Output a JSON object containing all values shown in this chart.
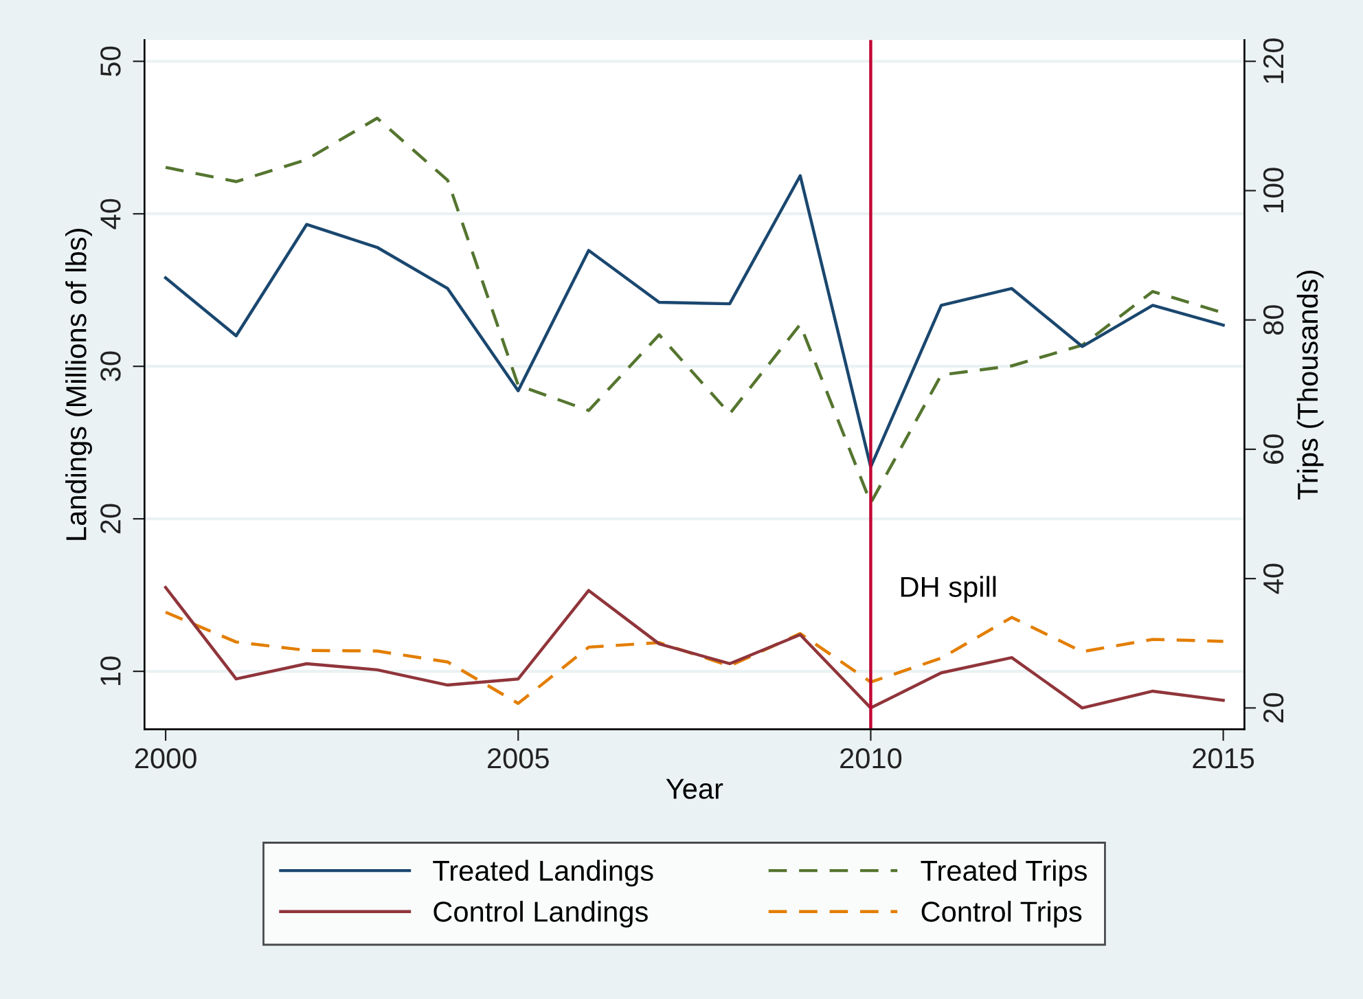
{
  "chart_data": {
    "type": "line",
    "xlabel": "Year",
    "ylabel": "Landings (Millions of lbs)",
    "y2label": "Trips (Thousands)",
    "x": [
      2000,
      2001,
      2002,
      2003,
      2004,
      2005,
      2006,
      2007,
      2008,
      2009,
      2010,
      2011,
      2012,
      2013,
      2014,
      2015
    ],
    "series": [
      {
        "name": "Treated Landings",
        "color": "#1a476f",
        "line_style": "solid",
        "values": [
          35.8,
          32.0,
          39.3,
          37.8,
          35.1,
          28.4,
          37.6,
          34.2,
          34.1,
          42.5,
          23.4,
          34.0,
          35.1,
          31.3,
          34.0,
          32.7
        ]
      },
      {
        "name": "Control Landings",
        "color": "#90353b",
        "line_style": "solid",
        "values": [
          15.5,
          9.5,
          10.5,
          10.1,
          9.1,
          9.5,
          15.3,
          11.8,
          10.5,
          12.4,
          7.6,
          9.9,
          10.9,
          7.6,
          8.7,
          8.1
        ]
      },
      {
        "name": "Treated Trips",
        "color": "#55752f",
        "line_style": "dashed",
        "axis": "y2",
        "values": [
          103.6,
          101.4,
          104.8,
          111.2,
          101.6,
          69.9,
          66.0,
          77.7,
          65.5,
          79.3,
          51.7,
          71.5,
          72.9,
          76.1,
          84.4,
          81.1
        ]
      },
      {
        "name": "Control Trips",
        "color": "#e37e00",
        "line_style": "dashed",
        "axis": "y2",
        "values": [
          34.8,
          30.2,
          28.9,
          28.8,
          27.1,
          20.7,
          29.4,
          30.1,
          26.5,
          31.5,
          24.0,
          27.7,
          34.0,
          28.7,
          30.6,
          30.3
        ]
      }
    ],
    "xlim": [
      1999.7,
      2015.3
    ],
    "xticks": [
      2000,
      2005,
      2010,
      2015
    ],
    "ylim": [
      6.2,
      51.4
    ],
    "yticks": [
      10,
      20,
      30,
      40,
      50
    ],
    "y2lim": [
      16.7,
      123.3
    ],
    "y2ticks": [
      20,
      40,
      60,
      80,
      100,
      120
    ],
    "ref_lines": [
      {
        "axis": "x",
        "value": 2010,
        "label": "DH spill",
        "color": "#c10534"
      }
    ],
    "grid": "y",
    "legend": "bottom",
    "marker": "none"
  }
}
